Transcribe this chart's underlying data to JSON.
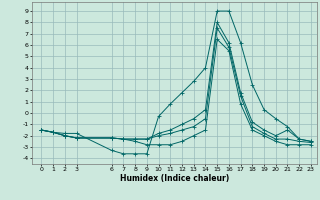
{
  "title": "",
  "xlabel": "Humidex (Indice chaleur)",
  "background_color": "#cce8dd",
  "grid_color": "#99bbbb",
  "line_color": "#006666",
  "xlim": [
    -0.8,
    23.5
  ],
  "ylim": [
    -4.5,
    9.8
  ],
  "x_ticks": [
    0,
    1,
    2,
    3,
    6,
    7,
    8,
    9,
    10,
    11,
    12,
    13,
    14,
    15,
    16,
    17,
    18,
    19,
    20,
    21,
    22,
    23
  ],
  "y_ticks": [
    -4,
    -3,
    -2,
    -1,
    0,
    1,
    2,
    3,
    4,
    5,
    6,
    7,
    8,
    9
  ],
  "lines": [
    {
      "x": [
        0,
        1,
        2,
        3,
        6,
        7,
        8,
        9,
        10,
        11,
        12,
        13,
        14,
        15,
        16,
        17,
        18,
        19,
        20,
        21,
        22,
        23
      ],
      "y": [
        -1.5,
        -1.7,
        -1.8,
        -1.8,
        -3.3,
        -3.6,
        -3.6,
        -3.6,
        -0.3,
        0.8,
        1.8,
        2.8,
        4.0,
        9.0,
        9.0,
        6.2,
        2.5,
        0.3,
        -0.5,
        -1.2,
        -2.3,
        -2.5
      ]
    },
    {
      "x": [
        0,
        1,
        2,
        3,
        6,
        7,
        8,
        9,
        10,
        11,
        12,
        13,
        14,
        15,
        16,
        17,
        18,
        19,
        20,
        21,
        22,
        23
      ],
      "y": [
        -1.5,
        -1.7,
        -2.0,
        -2.2,
        -2.2,
        -2.3,
        -2.3,
        -2.3,
        -1.8,
        -1.5,
        -1.0,
        -0.5,
        0.3,
        8.0,
        6.2,
        1.8,
        -0.8,
        -1.5,
        -2.0,
        -1.5,
        -2.3,
        -2.5
      ]
    },
    {
      "x": [
        0,
        1,
        2,
        3,
        6,
        7,
        8,
        9,
        10,
        11,
        12,
        13,
        14,
        15,
        16,
        17,
        18,
        19,
        20,
        21,
        22,
        23
      ],
      "y": [
        -1.5,
        -1.7,
        -2.0,
        -2.2,
        -2.2,
        -2.3,
        -2.3,
        -2.3,
        -2.0,
        -1.8,
        -1.5,
        -1.2,
        -0.5,
        7.5,
        5.8,
        1.5,
        -1.2,
        -1.8,
        -2.3,
        -2.3,
        -2.5,
        -2.6
      ]
    },
    {
      "x": [
        0,
        1,
        2,
        3,
        6,
        7,
        8,
        9,
        10,
        11,
        12,
        13,
        14,
        15,
        16,
        17,
        18,
        19,
        20,
        21,
        22,
        23
      ],
      "y": [
        -1.5,
        -1.7,
        -2.0,
        -2.2,
        -2.2,
        -2.3,
        -2.5,
        -2.8,
        -2.8,
        -2.8,
        -2.5,
        -2.0,
        -1.5,
        6.5,
        5.5,
        0.8,
        -1.5,
        -2.0,
        -2.5,
        -2.8,
        -2.8,
        -2.8
      ]
    }
  ]
}
